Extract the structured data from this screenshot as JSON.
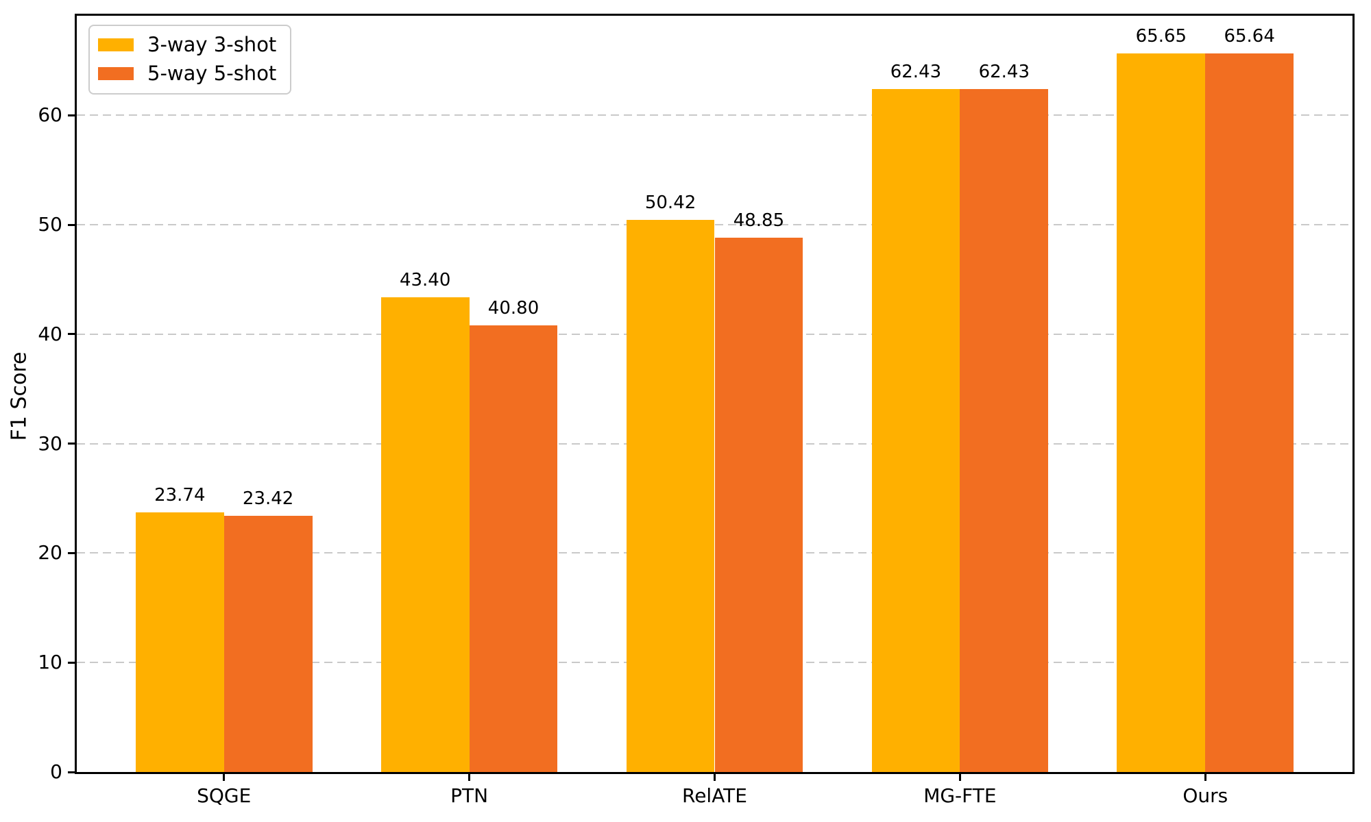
{
  "figure": {
    "background": "#ffffff",
    "axis_color": "#000000"
  },
  "chart_data": {
    "type": "bar",
    "title": "",
    "xlabel": "",
    "ylabel": "F1 Score",
    "categories": [
      "SQGE",
      "PTN",
      "RelATE",
      "MG-FTE",
      "Ours"
    ],
    "series": [
      {
        "name": "3-way 3-shot",
        "color": "#FFB000",
        "values": [
          23.74,
          43.4,
          50.42,
          62.43,
          65.65
        ],
        "value_labels": [
          "23.74",
          "43.40",
          "50.42",
          "62.43",
          "65.65"
        ]
      },
      {
        "name": "5-way 5-shot",
        "color": "#F26E21",
        "values": [
          23.42,
          40.8,
          48.85,
          62.43,
          65.64
        ],
        "value_labels": [
          "23.42",
          "40.80",
          "48.85",
          "62.43",
          "65.64"
        ]
      }
    ],
    "ylim": [
      0,
      69.1
    ],
    "yticks": [
      0,
      10,
      20,
      30,
      40,
      50,
      60
    ],
    "grid": {
      "axis": "y",
      "style": "dashed",
      "color": "#c9c9c9"
    },
    "legend": {
      "position": "upper-left"
    }
  }
}
